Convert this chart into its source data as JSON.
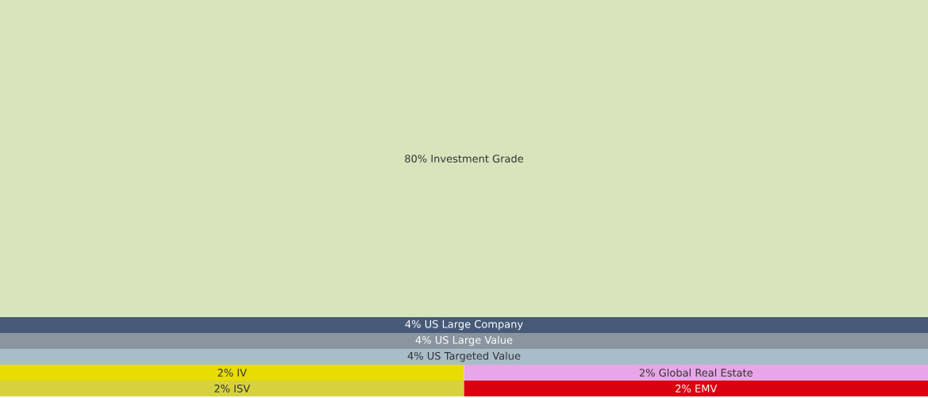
{
  "chart_data": {
    "type": "other",
    "categories": [
      "Investment Grade",
      "US Large Company",
      "US Large Value",
      "US Targeted Value",
      "IV",
      "Global Real Estate",
      "ISV",
      "EMV"
    ],
    "values": [
      80,
      4,
      4,
      4,
      2,
      2,
      2,
      2
    ],
    "value_labels": [
      "80%",
      "4%",
      "4%",
      "4%",
      "2%",
      "2%",
      "2%",
      "2%"
    ],
    "colors": [
      "#d9e4bc",
      "#465a78",
      "#8a959f",
      "#a9bdc8",
      "#e8dc00",
      "#e8a6e8",
      "#d6d23e",
      "#d90010"
    ]
  }
}
